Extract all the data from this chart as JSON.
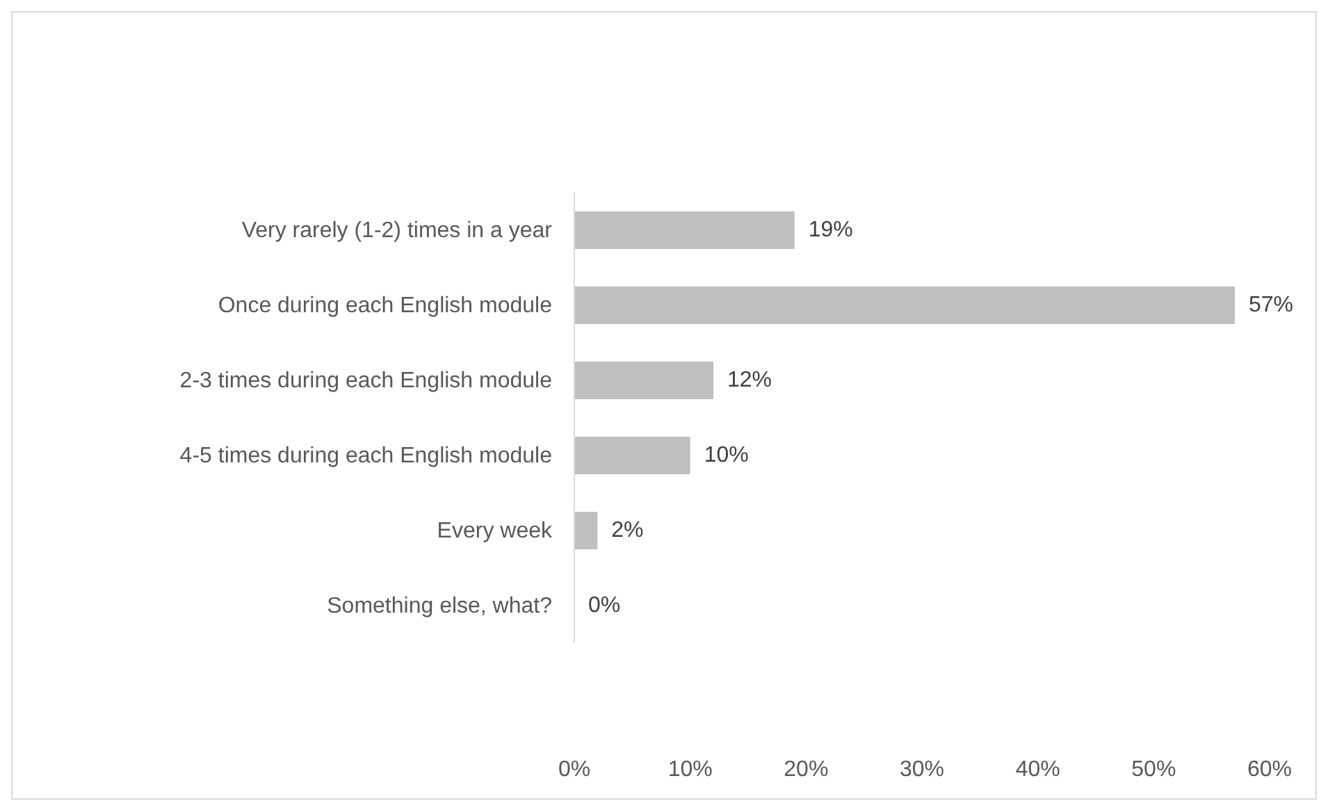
{
  "chart_data": {
    "type": "bar",
    "orientation": "horizontal",
    "categories": [
      "Very rarely (1-2) times in a year",
      "Once during each English module",
      "2-3 times during each English module",
      "4-5 times during each English module",
      "Every week",
      "Something else, what?"
    ],
    "values": [
      19,
      57,
      12,
      10,
      2,
      0
    ],
    "value_labels": [
      "19%",
      "57%",
      "12%",
      "10%",
      "2%",
      "0%"
    ],
    "color": "#bfbfbf",
    "xlim": [
      0,
      60
    ],
    "xticks": [
      {
        "value": 0,
        "label": "0%"
      },
      {
        "value": 10,
        "label": "10%"
      },
      {
        "value": 20,
        "label": "20%"
      },
      {
        "value": 30,
        "label": "30%"
      },
      {
        "value": 40,
        "label": "40%"
      },
      {
        "value": 50,
        "label": "50%"
      },
      {
        "value": 60,
        "label": "60%"
      }
    ]
  }
}
